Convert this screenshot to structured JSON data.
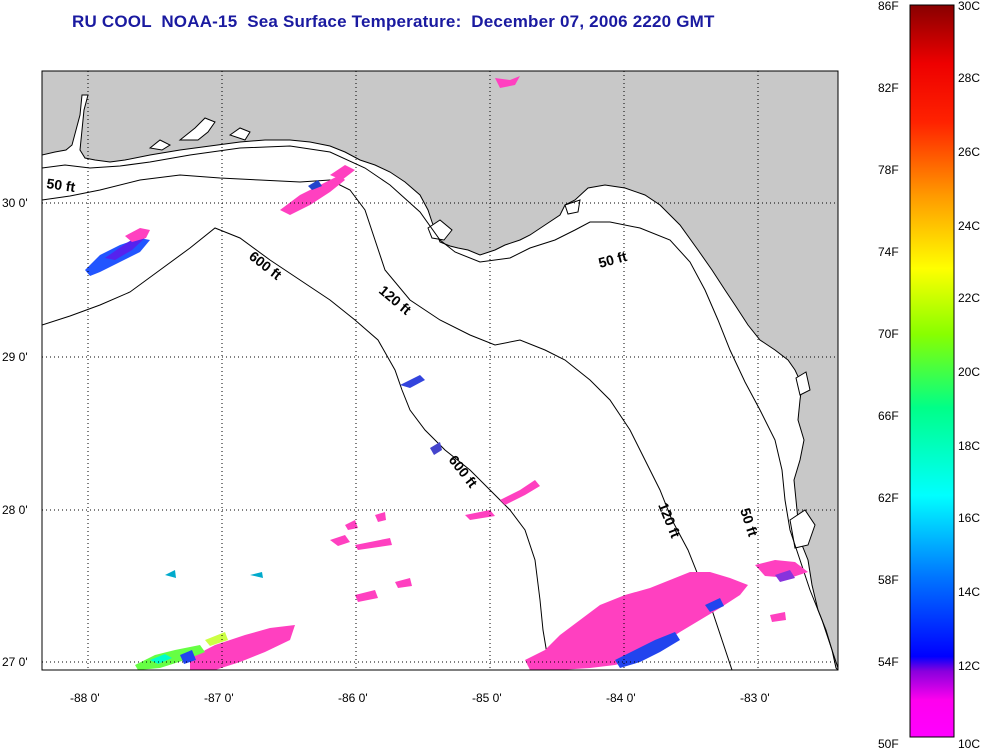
{
  "title": "RU COOL  NOAA-15  Sea Surface Temperature:  December 07, 2006 2220 GMT",
  "map": {
    "lat_ticks": [
      "30 0'",
      "29 0'",
      "28 0'",
      "27 0'"
    ],
    "lon_ticks": [
      "-88 0'",
      "-87 0'",
      "-86 0'",
      "-85 0'",
      "-84 0'",
      "-83 0'"
    ],
    "contour_labels": [
      "50 ft",
      "600 ft",
      "120 ft",
      "50 ft",
      "600 ft",
      "120 ft",
      "50 ft"
    ]
  },
  "colorbar": {
    "fahrenheit": [
      "86F",
      "82F",
      "78F",
      "74F",
      "70F",
      "66F",
      "62F",
      "58F",
      "54F",
      "50F"
    ],
    "celsius": [
      "30C",
      "28C",
      "26C",
      "24C",
      "22C",
      "20C",
      "18C",
      "16C",
      "14C",
      "12C",
      "10C"
    ],
    "colors": [
      "#ff00ff",
      "#cc00ff",
      "#7700ff",
      "#0000ff",
      "#0066ff",
      "#00ccff",
      "#00ffcc",
      "#00ff66",
      "#66ff00",
      "#ccff00",
      "#ffff00",
      "#ffcc00",
      "#ff8800",
      "#ff4400",
      "#ff0000",
      "#cc0000",
      "#990000"
    ]
  },
  "colors": {
    "land": "#c8c8c8",
    "water": "#ffffff",
    "title": "#1a1aa0",
    "patch": "#ff40c0"
  }
}
